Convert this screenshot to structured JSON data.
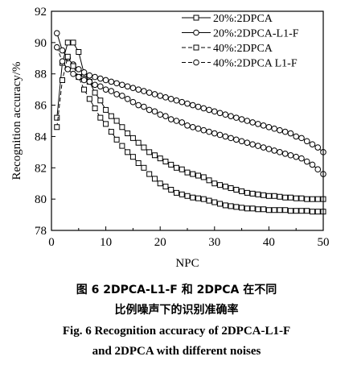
{
  "chart_data": {
    "type": "line",
    "xlabel": "NPC",
    "ylabel": "Recognition accuracy/%",
    "xlim": [
      0,
      50
    ],
    "ylim": [
      78,
      92
    ],
    "xticks": [
      "0",
      "10",
      "20",
      "30",
      "40",
      "50"
    ],
    "yticks": [
      "78",
      "80",
      "82",
      "84",
      "86",
      "88",
      "90",
      "92"
    ],
    "grid": false,
    "legend_position": "top-right",
    "series": [
      {
        "name": "20%:2DPCA",
        "line_style": "solid",
        "marker": "square",
        "x": [
          1,
          2,
          3,
          4,
          5,
          6,
          7,
          8,
          9,
          10,
          11,
          12,
          13,
          14,
          15,
          16,
          17,
          18,
          19,
          20,
          21,
          22,
          23,
          24,
          25,
          26,
          27,
          28,
          29,
          30,
          31,
          32,
          33,
          34,
          35,
          36,
          37,
          38,
          39,
          40,
          41,
          42,
          43,
          44,
          45,
          46,
          47,
          48,
          49,
          50
        ],
        "y": [
          85.2,
          88.7,
          90.0,
          90.0,
          89.4,
          88.0,
          87.5,
          86.8,
          86.3,
          85.7,
          85.3,
          85.0,
          84.6,
          84.2,
          83.9,
          83.6,
          83.3,
          83.0,
          82.8,
          82.6,
          82.4,
          82.2,
          82.0,
          81.9,
          81.7,
          81.6,
          81.5,
          81.4,
          81.2,
          81.0,
          80.9,
          80.8,
          80.7,
          80.6,
          80.5,
          80.4,
          80.35,
          80.3,
          80.25,
          80.2,
          80.2,
          80.15,
          80.1,
          80.1,
          80.05,
          80.05,
          80.0,
          80.0,
          80.0,
          80.0
        ]
      },
      {
        "name": "20%:2DPCA-L1-F",
        "line_style": "solid",
        "marker": "circle",
        "x": [
          1,
          2,
          3,
          4,
          5,
          6,
          7,
          8,
          9,
          10,
          11,
          12,
          13,
          14,
          15,
          16,
          17,
          18,
          19,
          20,
          21,
          22,
          23,
          24,
          25,
          26,
          27,
          28,
          29,
          30,
          31,
          32,
          33,
          34,
          35,
          36,
          37,
          38,
          39,
          40,
          41,
          42,
          43,
          44,
          45,
          46,
          47,
          48,
          49,
          50
        ],
        "y": [
          90.6,
          89.5,
          89.0,
          88.6,
          88.3,
          88.1,
          87.9,
          87.8,
          87.7,
          87.6,
          87.5,
          87.4,
          87.3,
          87.2,
          87.1,
          87.0,
          86.9,
          86.8,
          86.7,
          86.6,
          86.5,
          86.4,
          86.3,
          86.2,
          86.1,
          86.0,
          85.9,
          85.8,
          85.7,
          85.6,
          85.5,
          85.4,
          85.3,
          85.2,
          85.1,
          85.0,
          84.9,
          84.8,
          84.7,
          84.6,
          84.5,
          84.4,
          84.3,
          84.2,
          84.0,
          83.9,
          83.7,
          83.5,
          83.3,
          83.0
        ]
      },
      {
        "name": "40%:2DPCA",
        "line_style": "dashed",
        "marker": "square",
        "x": [
          1,
          2,
          3,
          4,
          5,
          6,
          7,
          8,
          9,
          10,
          11,
          12,
          13,
          14,
          15,
          16,
          17,
          18,
          19,
          20,
          21,
          22,
          23,
          24,
          25,
          26,
          27,
          28,
          29,
          30,
          31,
          32,
          33,
          34,
          35,
          36,
          37,
          38,
          39,
          40,
          41,
          42,
          43,
          44,
          45,
          46,
          47,
          48,
          49,
          50
        ],
        "y": [
          84.6,
          87.6,
          89.1,
          88.5,
          87.8,
          87.0,
          86.4,
          85.8,
          85.2,
          84.8,
          84.3,
          83.8,
          83.4,
          83.0,
          82.7,
          82.3,
          82.0,
          81.6,
          81.3,
          81.0,
          80.8,
          80.6,
          80.4,
          80.3,
          80.2,
          80.1,
          80.05,
          80.0,
          79.9,
          79.8,
          79.7,
          79.6,
          79.55,
          79.5,
          79.45,
          79.4,
          79.4,
          79.35,
          79.35,
          79.3,
          79.3,
          79.3,
          79.3,
          79.25,
          79.25,
          79.25,
          79.25,
          79.2,
          79.2,
          79.2
        ]
      },
      {
        "name": "40%:2DPCA L1-F",
        "line_style": "dashed",
        "marker": "circle",
        "x": [
          1,
          2,
          3,
          4,
          5,
          6,
          7,
          8,
          9,
          10,
          11,
          12,
          13,
          14,
          15,
          16,
          17,
          18,
          19,
          20,
          21,
          22,
          23,
          24,
          25,
          26,
          27,
          28,
          29,
          30,
          31,
          32,
          33,
          34,
          35,
          36,
          37,
          38,
          39,
          40,
          41,
          42,
          43,
          44,
          45,
          46,
          47,
          48,
          49,
          50
        ],
        "y": [
          89.7,
          88.8,
          88.3,
          88.0,
          87.8,
          87.6,
          87.5,
          87.3,
          87.2,
          87.0,
          86.9,
          86.7,
          86.6,
          86.4,
          86.2,
          86.0,
          85.9,
          85.7,
          85.6,
          85.4,
          85.3,
          85.1,
          85.0,
          84.9,
          84.7,
          84.6,
          84.5,
          84.4,
          84.3,
          84.2,
          84.1,
          84.0,
          83.9,
          83.8,
          83.7,
          83.6,
          83.5,
          83.4,
          83.3,
          83.2,
          83.1,
          83.0,
          82.9,
          82.8,
          82.7,
          82.6,
          82.4,
          82.2,
          81.9,
          81.6
        ]
      }
    ]
  },
  "caption": {
    "cn_line1": "图 6    2DPCA-L1-F 和 2DPCA 在不同",
    "cn_line2": "比例噪声下的识别准确率",
    "en_line1": "Fig. 6    Recognition accuracy of 2DPCA-L1-F",
    "en_line2": "and 2DPCA with different noises"
  }
}
